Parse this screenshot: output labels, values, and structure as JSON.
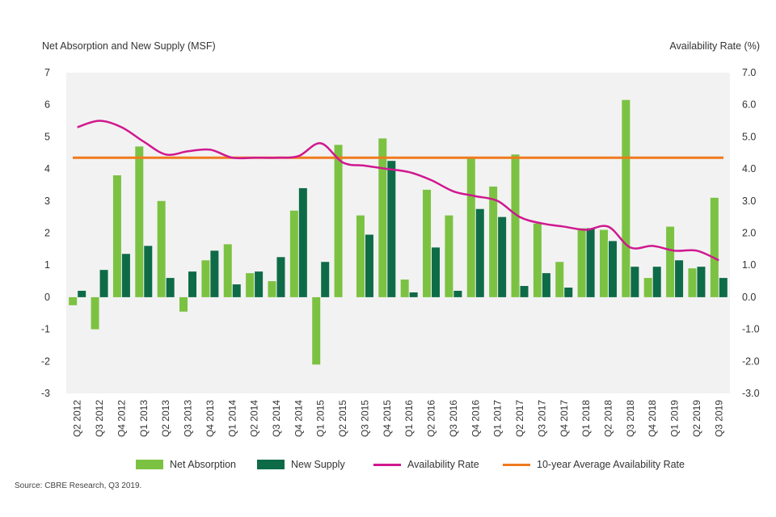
{
  "chart_data": {
    "type": "bar",
    "y_left_label": "Net Absorption and New Supply (MSF)",
    "y_right_label": "Availability Rate (%)",
    "y_left_ticks": [
      "7",
      "6",
      "5",
      "4",
      "3",
      "2",
      "1",
      "0",
      "-1",
      "-2",
      "-3"
    ],
    "y_right_ticks": [
      "7.0",
      "6.0",
      "5.0",
      "4.0",
      "3.0",
      "2.0",
      "1.0",
      "0.0",
      "-1.0",
      "-2.0",
      "-3.0"
    ],
    "ylim": [
      -3,
      7
    ],
    "categories": [
      "Q2 2012",
      "Q3 2012",
      "Q4 2012",
      "Q1 2013",
      "Q2 2013",
      "Q3 2013",
      "Q4 2013",
      "Q1 2014",
      "Q2 2014",
      "Q3 2014",
      "Q4 2014",
      "Q1 2015",
      "Q2 2015",
      "Q3 2015",
      "Q4 2015",
      "Q1 2016",
      "Q2 2016",
      "Q3 2016",
      "Q4 2016",
      "Q1 2017",
      "Q2 2017",
      "Q3 2017",
      "Q4 2017",
      "Q1 2018",
      "Q2 2018",
      "Q3 2018",
      "Q4 2018",
      "Q1 2019",
      "Q2 2019",
      "Q3 2019"
    ],
    "series": [
      {
        "name": "Net Absorption",
        "kind": "bar",
        "color": "#7cc242",
        "values": [
          -0.25,
          -1.0,
          3.8,
          4.7,
          3.0,
          -0.45,
          1.15,
          1.65,
          0.75,
          0.5,
          2.7,
          -2.1,
          4.75,
          2.55,
          4.95,
          0.55,
          3.35,
          2.55,
          4.35,
          3.45,
          4.45,
          2.3,
          1.1,
          2.15,
          2.1,
          6.15,
          0.6,
          2.2,
          0.9,
          3.1
        ]
      },
      {
        "name": "New Supply",
        "kind": "bar",
        "color": "#0e6b47",
        "values": [
          0.2,
          0.85,
          1.35,
          1.6,
          0.6,
          0.8,
          1.45,
          0.4,
          0.8,
          1.25,
          3.4,
          1.1,
          0.0,
          1.95,
          4.25,
          0.15,
          1.55,
          0.2,
          2.75,
          2.5,
          0.35,
          0.75,
          0.3,
          2.15,
          1.75,
          0.95,
          0.95,
          1.15,
          0.95,
          0.6
        ]
      },
      {
        "name": "Availability Rate",
        "kind": "line",
        "color": "#d0188f",
        "values": [
          5.3,
          5.5,
          5.3,
          4.85,
          4.45,
          4.55,
          4.6,
          4.35,
          4.35,
          4.35,
          4.4,
          4.8,
          4.2,
          4.1,
          4.0,
          3.9,
          3.65,
          3.3,
          3.15,
          3.0,
          2.5,
          2.3,
          2.2,
          2.1,
          2.2,
          1.55,
          1.6,
          1.45,
          1.45,
          1.15
        ]
      },
      {
        "name": "10-year Average Availability Rate",
        "kind": "line",
        "color": "#f07a1e",
        "values": [
          4.35,
          4.35,
          4.35,
          4.35,
          4.35,
          4.35,
          4.35,
          4.35,
          4.35,
          4.35,
          4.35,
          4.35,
          4.35,
          4.35,
          4.35,
          4.35,
          4.35,
          4.35,
          4.35,
          4.35,
          4.35,
          4.35,
          4.35,
          4.35,
          4.35,
          4.35,
          4.35,
          4.35,
          4.35,
          4.35
        ]
      }
    ],
    "plot_background": "#f2f2f2",
    "grid": false,
    "legend_position": "bottom"
  },
  "legend": [
    {
      "label": "Net Absorption",
      "color": "#7cc242",
      "shape": "bar"
    },
    {
      "label": "New Supply",
      "color": "#0e6b47",
      "shape": "bar"
    },
    {
      "label": "Availability Rate",
      "color": "#d0188f",
      "shape": "line"
    },
    {
      "label": "10-year Average Availability Rate",
      "color": "#f07a1e",
      "shape": "line"
    }
  ],
  "source": "Source: CBRE Research, Q3 2019."
}
